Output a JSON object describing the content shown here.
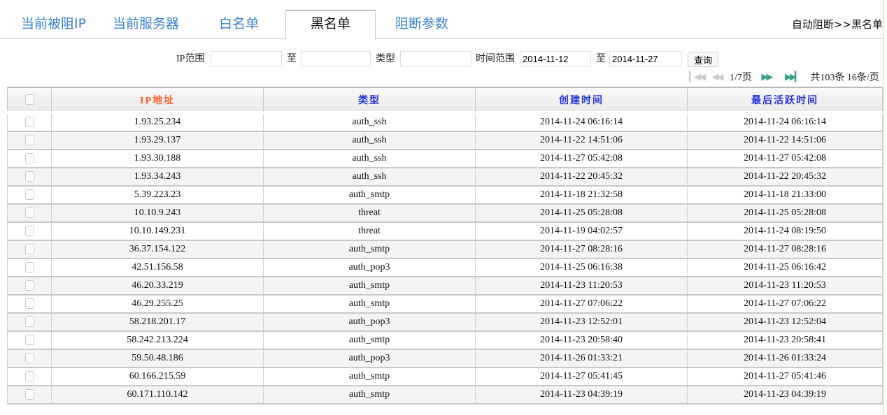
{
  "tabs": [
    {
      "label": "当前被阻IP"
    },
    {
      "label": "当前服务器"
    },
    {
      "label": "白名单"
    },
    {
      "label": "黑名单",
      "active": true
    },
    {
      "label": "阻断参数"
    }
  ],
  "breadcrumb": "自动阻断>>黑名单",
  "filter": {
    "ip_label": "IP范围",
    "to1": "至",
    "type_label": "类型",
    "time_label": "时间范围",
    "start": "2014-11-12",
    "to2": "至",
    "end": "2014-11-27",
    "query": "查询"
  },
  "pager": {
    "page": "1/7页",
    "summary": "共103条 16条/页"
  },
  "table": {
    "headers": [
      "IP地址",
      "类型",
      "创建时间",
      "最后活跃时间"
    ],
    "rows": [
      [
        "1.93.25.234",
        "auth_ssh",
        "2014-11-24 06:16:14",
        "2014-11-24 06:16:14"
      ],
      [
        "1.93.29.137",
        "auth_ssh",
        "2014-11-22 14:51:06",
        "2014-11-22 14:51:06"
      ],
      [
        "1.93.30.188",
        "auth_ssh",
        "2014-11-27 05:42:08",
        "2014-11-27 05:42:08"
      ],
      [
        "1.93.34.243",
        "auth_ssh",
        "2014-11-22 20:45:32",
        "2014-11-22 20:45:32"
      ],
      [
        "5.39.223.23",
        "auth_smtp",
        "2014-11-18 21:32:58",
        "2014-11-18 21:33:00"
      ],
      [
        "10.10.9.243",
        "threat",
        "2014-11-25 05:28:08",
        "2014-11-25 05:28:08"
      ],
      [
        "10.10.149.231",
        "threat",
        "2014-11-19 04:02:57",
        "2014-11-24 08:19:50"
      ],
      [
        "36.37.154.122",
        "auth_smtp",
        "2014-11-27 08:28:16",
        "2014-11-27 08:28:16"
      ],
      [
        "42.51.156.58",
        "auth_pop3",
        "2014-11-25 06:16:38",
        "2014-11-25 06:16:42"
      ],
      [
        "46.20.33.219",
        "auth_smtp",
        "2014-11-23 11:20:53",
        "2014-11-23 11:20:53"
      ],
      [
        "46.29.255.25",
        "auth_smtp",
        "2014-11-27 07:06:22",
        "2014-11-27 07:06:22"
      ],
      [
        "58.218.201.17",
        "auth_pop3",
        "2014-11-23 12:52:01",
        "2014-11-23 12:52:04"
      ],
      [
        "58.242.213.224",
        "auth_smtp",
        "2014-11-23 20:58:40",
        "2014-11-23 20:58:41"
      ],
      [
        "59.50.48.186",
        "auth_pop3",
        "2014-11-26 01:33:21",
        "2014-11-26 01:33:24"
      ],
      [
        "60.166.215.59",
        "auth_smtp",
        "2014-11-27 05:41:45",
        "2014-11-27 05:41:46"
      ],
      [
        "60.171.110.142",
        "auth_smtp",
        "2014-11-23 04:39:19",
        "2014-11-23 04:39:19"
      ]
    ]
  }
}
